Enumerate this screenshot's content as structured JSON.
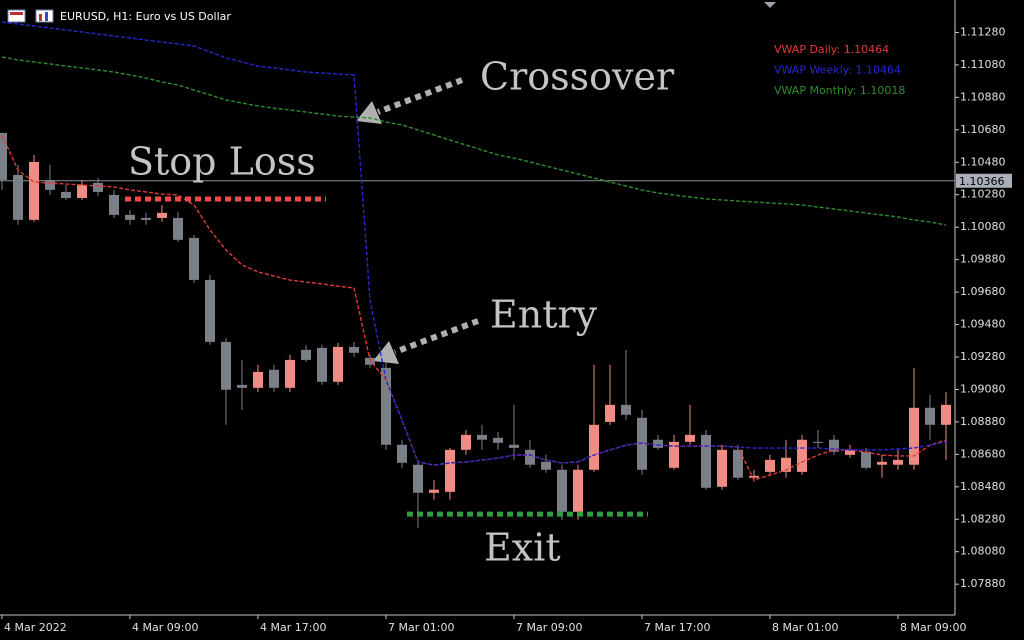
{
  "chart_data": {
    "type": "candlestick",
    "title": "EURUSD, H1:  Euro vs US Dollar",
    "categories": [
      "4 Mar 2022",
      null,
      null,
      null,
      null,
      null,
      null,
      null,
      "4 Mar 09:00",
      null,
      null,
      null,
      null,
      null,
      null,
      null,
      "4 Mar 17:00",
      null,
      null,
      null,
      null,
      null,
      null,
      null,
      "7 Mar 01:00",
      null,
      null,
      null,
      null,
      null,
      null,
      null,
      "7 Mar 09:00",
      null,
      null,
      null,
      null,
      null,
      null,
      null,
      "7 Mar 17:00",
      null,
      null,
      null,
      null,
      null,
      null,
      null,
      "8 Mar 01:00",
      null,
      null,
      null,
      null,
      null,
      null,
      null,
      "8 Mar 09:00",
      null,
      null,
      null
    ],
    "open": [
      1.10661,
      1.10402,
      1.10125,
      1.10371,
      1.10297,
      1.1026,
      1.10353,
      1.10279,
      1.10156,
      1.10137,
      1.10137,
      1.10137,
      1.10014,
      1.09755,
      1.09373,
      1.09108,
      1.0909,
      1.09201,
      1.0909,
      1.09324,
      1.09336,
      1.09127,
      1.09342,
      1.09275,
      1.09213,
      1.08739,
      1.08616,
      1.08443,
      1.08449,
      1.08708,
      1.088,
      1.08782,
      1.08739,
      1.08708,
      1.08634,
      1.08585,
      1.08326,
      1.08585,
      1.0888,
      1.08985,
      1.08905,
      1.0877,
      1.08597,
      1.08757,
      1.088,
      1.0848,
      1.08708,
      1.08536,
      1.08572,
      1.08572,
      1.08572,
      1.08757,
      1.0877,
      1.08677,
      1.08696,
      1.08616,
      1.08616,
      1.08616,
      1.08967,
      1.08862
    ],
    "high": [
      1.10661,
      1.10464,
      1.10525,
      1.10464,
      1.1034,
      1.10371,
      1.10384,
      1.1031,
      1.10186,
      1.10168,
      1.10217,
      1.10174,
      1.10032,
      1.09786,
      1.09398,
      1.09262,
      1.09232,
      1.09232,
      1.09293,
      1.09355,
      1.09355,
      1.09367,
      1.09373,
      1.09293,
      1.0925,
      1.0877,
      1.08646,
      1.08523,
      1.0872,
      1.08831,
      1.08862,
      1.08819,
      1.08985,
      1.0877,
      1.08677,
      1.08616,
      1.08616,
      1.09232,
      1.09232,
      1.09324,
      1.08954,
      1.088,
      1.088,
      1.08985,
      1.08831,
      1.08739,
      1.08739,
      1.08585,
      1.08677,
      1.0877,
      1.088,
      1.08831,
      1.088,
      1.08739,
      1.0872,
      1.08677,
      1.08708,
      1.09213,
      1.09047,
      1.09065
    ],
    "low": [
      1.1031,
      1.10094,
      1.10113,
      1.10279,
      1.10248,
      1.10248,
      1.10273,
      1.10137,
      1.10094,
      1.10094,
      1.10113,
      1.09989,
      1.09737,
      1.09355,
      1.08862,
      1.08954,
      1.09065,
      1.09065,
      1.09065,
      1.0925,
      1.09108,
      1.09108,
      1.09281,
      1.09213,
      1.08708,
      1.08597,
      1.08228,
      1.084,
      1.084,
      1.08677,
      1.08708,
      1.08708,
      1.08646,
      1.08597,
      1.08566,
      1.08277,
      1.08277,
      1.08572,
      1.08862,
      1.08893,
      1.08554,
      1.08708,
      1.08585,
      1.08739,
      1.08462,
      1.08462,
      1.08523,
      1.08511,
      1.08554,
      1.08536,
      1.08554,
      1.0872,
      1.08677,
      1.08659,
      1.08585,
      1.08536,
      1.08585,
      1.08585,
      1.0877,
      1.08646
    ],
    "close": [
      1.10371,
      1.10125,
      1.10482,
      1.1031,
      1.1026,
      1.1034,
      1.10297,
      1.10156,
      1.10125,
      1.10125,
      1.10168,
      1.10002,
      1.09755,
      1.09373,
      1.09078,
      1.0909,
      1.09188,
      1.0909,
      1.09262,
      1.09262,
      1.09127,
      1.09342,
      1.09306,
      1.09232,
      1.08739,
      1.08628,
      1.08443,
      1.08462,
      1.08708,
      1.088,
      1.0877,
      1.08751,
      1.0872,
      1.08616,
      1.08585,
      1.08326,
      1.08585,
      1.08862,
      1.08985,
      1.08924,
      1.08585,
      1.0872,
      1.08757,
      1.088,
      1.08474,
      1.08708,
      1.08536,
      1.08548,
      1.08646,
      1.08659,
      1.0877,
      1.08751,
      1.08696,
      1.08708,
      1.08597,
      1.08634,
      1.08646,
      1.08967,
      1.08862,
      1.08985
    ],
    "up_color": "#f28c82",
    "down_color": "#7b7f88",
    "series": [
      {
        "name": "VWAP Daily: 1.10464",
        "color": "#e03a3a",
        "values": [
          1.10648,
          1.10432,
          1.10358,
          1.10352,
          1.10346,
          1.1034,
          1.10334,
          1.10328,
          1.10309,
          1.10297,
          1.10284,
          1.10278,
          1.10217,
          1.10063,
          1.09939,
          1.09847,
          1.09804,
          1.09779,
          1.09754,
          1.09742,
          1.0973,
          1.09717,
          1.09705,
          1.09262,
          1.09138,
          1.08892,
          1.08633,
          1.08614,
          1.08627,
          1.08633,
          1.08645,
          1.08657,
          1.08676,
          1.08676,
          1.08645,
          1.08627,
          1.08633,
          1.08676,
          1.08707,
          1.08737,
          1.0875,
          1.08737,
          1.08731,
          1.08731,
          1.08731,
          1.08731,
          1.08725,
          1.08522,
          1.08553,
          1.08583,
          1.08633,
          1.08676,
          1.08707,
          1.08707,
          1.08694,
          1.08676,
          1.0867,
          1.0867,
          1.08737,
          1.08768
        ]
      },
      {
        "name": "VWAP Weekly: 1.10464",
        "color": "#2828d0",
        "values": [
          1.11344,
          1.11332,
          1.1132,
          1.11307,
          1.11295,
          1.11283,
          1.1127,
          1.11258,
          1.11246,
          1.11233,
          1.11221,
          1.11209,
          1.11197,
          1.1116,
          1.11123,
          1.11098,
          1.11073,
          1.11061,
          1.11049,
          1.11036,
          1.1103,
          1.11024,
          1.11018,
          1.09631,
          1.09138,
          1.08892,
          1.08633,
          1.08614,
          1.08627,
          1.08633,
          1.08645,
          1.08657,
          1.08676,
          1.08676,
          1.08645,
          1.08627,
          1.08633,
          1.08676,
          1.08707,
          1.08737,
          1.0875,
          1.08737,
          1.08731,
          1.08731,
          1.08731,
          1.08731,
          1.08725,
          1.08719,
          1.08719,
          1.08719,
          1.08719,
          1.08719,
          1.08713,
          1.08707,
          1.08707,
          1.08707,
          1.08713,
          1.08719,
          1.08737,
          1.08756
        ]
      },
      {
        "name": "VWAP Monthly: 1.10018",
        "color": "#2e8b2e",
        "values": [
          1.11129,
          1.1111,
          1.11098,
          1.11086,
          1.11073,
          1.11061,
          1.11049,
          1.11036,
          1.11018,
          1.10999,
          1.10975,
          1.10956,
          1.10925,
          1.10895,
          1.10864,
          1.10845,
          1.10827,
          1.10814,
          1.10802,
          1.1079,
          1.10777,
          1.10765,
          1.10759,
          1.10753,
          1.10728,
          1.1071,
          1.10679,
          1.10648,
          1.10617,
          1.10586,
          1.10556,
          1.10525,
          1.10506,
          1.10482,
          1.10457,
          1.10432,
          1.10408,
          1.10383,
          1.10358,
          1.10334,
          1.10309,
          1.10291,
          1.10278,
          1.10266,
          1.10254,
          1.10248,
          1.10241,
          1.10235,
          1.10229,
          1.10223,
          1.10217,
          1.10204,
          1.10192,
          1.1018,
          1.10167,
          1.10155,
          1.10143,
          1.10124,
          1.10112,
          1.10093
        ]
      }
    ],
    "ylim": [
      1.0769,
      1.1148
    ],
    "yticks": [
      {
        "value": 1.1128,
        "label": "1.11280"
      },
      {
        "value": 1.1108,
        "label": "1.11080"
      },
      {
        "value": 1.1088,
        "label": "1.10880"
      },
      {
        "value": 1.1068,
        "label": "1.10680"
      },
      {
        "value": 1.1048,
        "label": "1.10480"
      },
      {
        "value": 1.1028,
        "label": "1.10280"
      },
      {
        "value": 1.1008,
        "label": "1.10080"
      },
      {
        "value": 1.0988,
        "label": "1.09880"
      },
      {
        "value": 1.0968,
        "label": "1.09680"
      },
      {
        "value": 1.0948,
        "label": "1.09480"
      },
      {
        "value": 1.0928,
        "label": "1.09280"
      },
      {
        "value": 1.0908,
        "label": "1.09080"
      },
      {
        "value": 1.0888,
        "label": "1.08880"
      },
      {
        "value": 1.0868,
        "label": "1.08680"
      },
      {
        "value": 1.0848,
        "label": "1.08480"
      },
      {
        "value": 1.0828,
        "label": "1.08280"
      },
      {
        "value": 1.0808,
        "label": "1.08080"
      },
      {
        "value": 1.0788,
        "label": "1.07880"
      }
    ],
    "current_price": 1.10366,
    "annotations": [
      {
        "text": "Crossover"
      },
      {
        "text": "Stop Loss",
        "level": 1.10254,
        "color": "#f04a4a"
      },
      {
        "text": "Entry"
      },
      {
        "text": "Exit",
        "level": 1.08312,
        "color": "#2e9e3e"
      }
    ]
  }
}
